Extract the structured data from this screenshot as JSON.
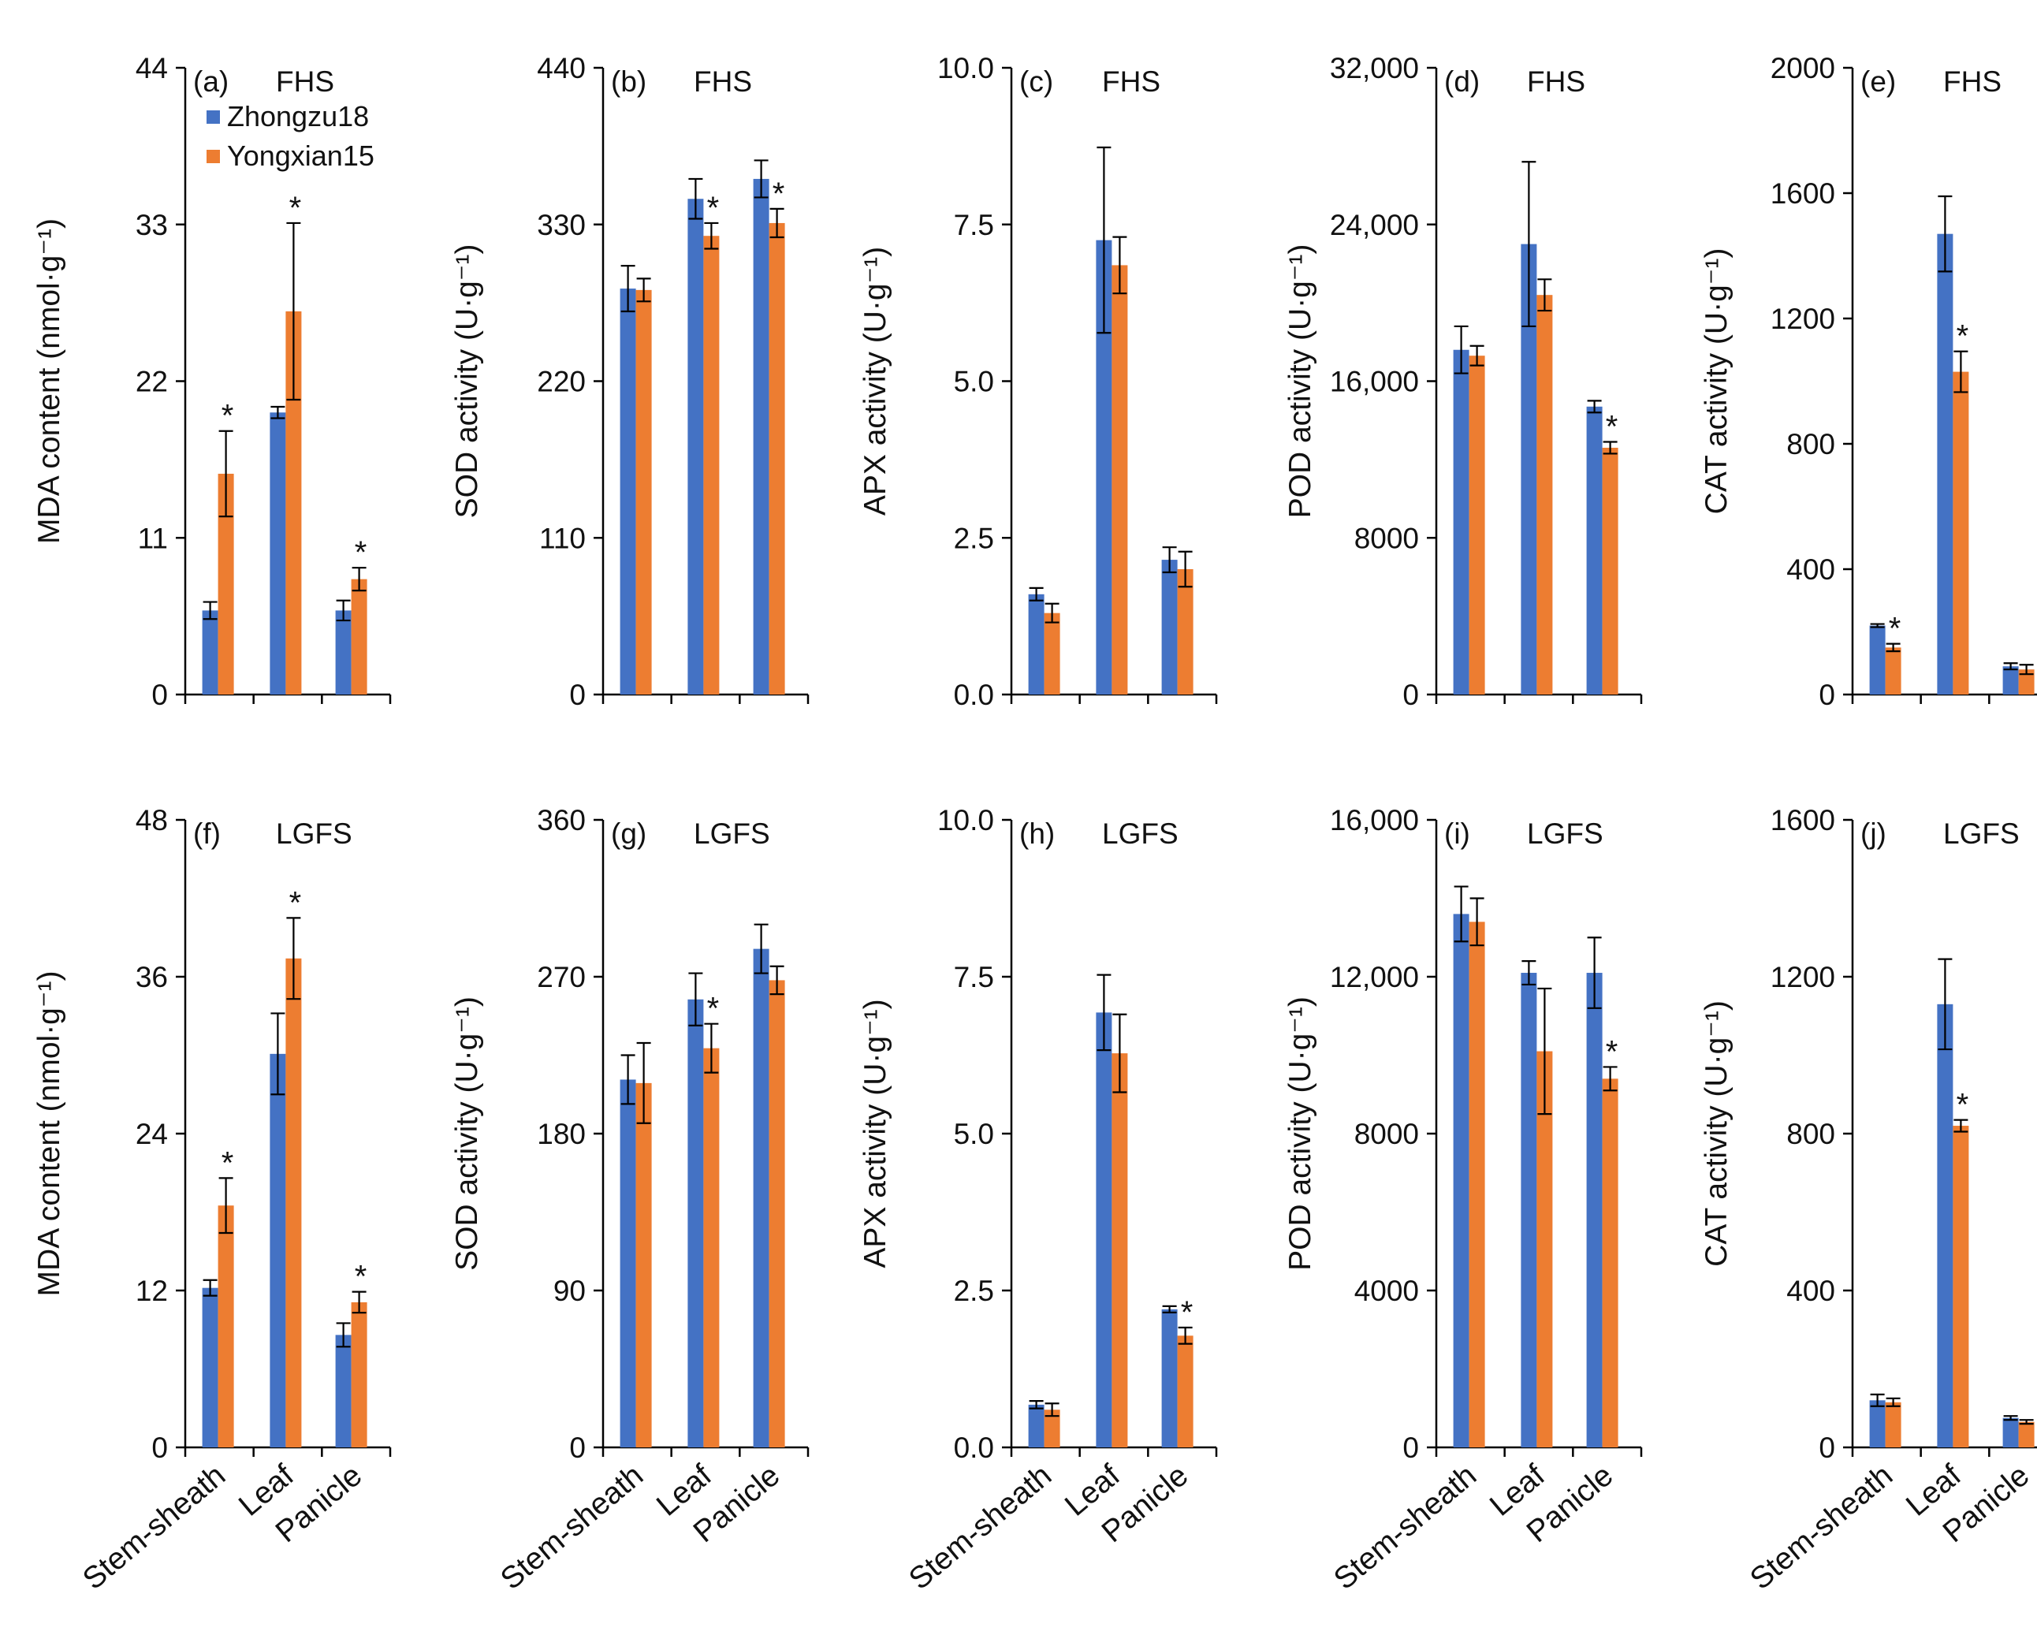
{
  "legend": {
    "series": [
      {
        "name": "Zhongzu18",
        "color": "#4472C4"
      },
      {
        "name": "Yongxian15",
        "color": "#ED7D31"
      }
    ]
  },
  "colors": {
    "series1": "#4472C4",
    "series2": "#ED7D31",
    "axis": "#000000"
  },
  "chart_data": [
    {
      "type": "bar",
      "panel": "(a)",
      "stage": "FHS",
      "ylabel": "MDA content (nmol·g⁻¹)",
      "ylim": [
        0,
        44
      ],
      "yticks": [
        "0",
        "11",
        "22",
        "33",
        "44"
      ],
      "yticks_values": [
        0,
        11,
        22,
        33,
        44
      ],
      "categories": [
        "Stem-sheath",
        "Leaf",
        "Panicle"
      ],
      "series": [
        {
          "name": "Zhongzu18",
          "values": [
            5.9,
            19.8,
            5.9
          ],
          "errors": [
            0.6,
            0.4,
            0.7
          ]
        },
        {
          "name": "Yongxian15",
          "values": [
            15.5,
            26.9,
            8.1
          ],
          "errors": [
            3.0,
            6.2,
            0.8
          ]
        }
      ],
      "significance": [
        {
          "category": 0,
          "label": "*"
        },
        {
          "category": 1,
          "label": "*"
        },
        {
          "category": 2,
          "label": "*"
        }
      ]
    },
    {
      "type": "bar",
      "panel": "(b)",
      "stage": "FHS",
      "ylabel": "SOD activity (U·g⁻¹)",
      "ylim": [
        0,
        440
      ],
      "yticks": [
        "0",
        "110",
        "220",
        "330",
        "440"
      ],
      "yticks_values": [
        0,
        110,
        220,
        330,
        440
      ],
      "categories": [
        "Stem-sheath",
        "Leaf",
        "Panicle"
      ],
      "series": [
        {
          "name": "Zhongzu18",
          "values": [
            285,
            348,
            362
          ],
          "errors": [
            16,
            14,
            13
          ]
        },
        {
          "name": "Yongxian15",
          "values": [
            284,
            322,
            331
          ],
          "errors": [
            8,
            9,
            10
          ]
        }
      ],
      "significance": [
        {
          "category": 1,
          "label": "*"
        },
        {
          "category": 2,
          "label": "*"
        }
      ]
    },
    {
      "type": "bar",
      "panel": "(c)",
      "stage": "FHS",
      "ylabel": "APX activity (U·g⁻¹)",
      "ylim": [
        0,
        10
      ],
      "yticks": [
        "0.0",
        "2.5",
        "5.0",
        "7.5",
        "10.0"
      ],
      "yticks_values": [
        0,
        2.5,
        5,
        7.5,
        10
      ],
      "categories": [
        "Stem-sheath",
        "Leaf",
        "Panicle"
      ],
      "series": [
        {
          "name": "Zhongzu18",
          "values": [
            1.6,
            7.25,
            2.15
          ],
          "errors": [
            0.1,
            1.48,
            0.2
          ]
        },
        {
          "name": "Yongxian15",
          "values": [
            1.3,
            6.85,
            2.0
          ],
          "errors": [
            0.15,
            0.45,
            0.28
          ]
        }
      ],
      "significance": []
    },
    {
      "type": "bar",
      "panel": "(d)",
      "stage": "FHS",
      "ylabel": "POD activity (U·g⁻¹)",
      "ylim": [
        0,
        32000
      ],
      "yticks": [
        "0",
        "8000",
        "16,000",
        "24,000",
        "32,000"
      ],
      "yticks_values": [
        0,
        8000,
        16000,
        24000,
        32000
      ],
      "categories": [
        "Stem-sheath",
        "Leaf",
        "Panicle"
      ],
      "series": [
        {
          "name": "Zhongzu18",
          "values": [
            17600,
            23000,
            14700
          ],
          "errors": [
            1200,
            4200,
            300
          ]
        },
        {
          "name": "Yongxian15",
          "values": [
            17300,
            20400,
            12600
          ],
          "errors": [
            500,
            800,
            300
          ]
        }
      ],
      "significance": [
        {
          "category": 2,
          "label": "*"
        }
      ]
    },
    {
      "type": "bar",
      "panel": "(e)",
      "stage": "FHS",
      "ylabel": "CAT activity (U·g⁻¹)",
      "ylim": [
        0,
        2000
      ],
      "yticks": [
        "0",
        "400",
        "800",
        "1200",
        "1600",
        "2000"
      ],
      "yticks_values": [
        0,
        400,
        800,
        1200,
        1600,
        2000
      ],
      "categories": [
        "Stem-sheath",
        "Leaf",
        "Panicle"
      ],
      "series": [
        {
          "name": "Zhongzu18",
          "values": [
            220,
            1470,
            90
          ],
          "errors": [
            5,
            120,
            10
          ]
        },
        {
          "name": "Yongxian15",
          "values": [
            150,
            1030,
            80
          ],
          "errors": [
            12,
            65,
            15
          ]
        }
      ],
      "significance": [
        {
          "category": 0,
          "label": "*"
        },
        {
          "category": 1,
          "label": "*"
        }
      ]
    },
    {
      "type": "bar",
      "panel": "(f)",
      "stage": "LGFS",
      "ylabel": "MDA content (nmol·g⁻¹)",
      "ylim": [
        0,
        48
      ],
      "yticks": [
        "0",
        "12",
        "24",
        "36",
        "48"
      ],
      "yticks_values": [
        0,
        12,
        24,
        36,
        48
      ],
      "categories": [
        "Stem-sheath",
        "Leaf",
        "Panicle"
      ],
      "series": [
        {
          "name": "Zhongzu18",
          "values": [
            12.2,
            30.1,
            8.6
          ],
          "errors": [
            0.6,
            3.1,
            0.9
          ]
        },
        {
          "name": "Yongxian15",
          "values": [
            18.5,
            37.4,
            11.1
          ],
          "errors": [
            2.1,
            3.1,
            0.8
          ]
        }
      ],
      "significance": [
        {
          "category": 0,
          "label": "*"
        },
        {
          "category": 1,
          "label": "*"
        },
        {
          "category": 2,
          "label": "*"
        }
      ]
    },
    {
      "type": "bar",
      "panel": "(g)",
      "stage": "LGFS",
      "ylabel": "SOD activity (U·g⁻¹)",
      "ylim": [
        0,
        360
      ],
      "yticks": [
        "0",
        "90",
        "180",
        "270",
        "360"
      ],
      "yticks_values": [
        0,
        90,
        180,
        270,
        360
      ],
      "categories": [
        "Stem-sheath",
        "Leaf",
        "Panicle"
      ],
      "series": [
        {
          "name": "Zhongzu18",
          "values": [
            211,
            257,
            286
          ],
          "errors": [
            14,
            15,
            14
          ]
        },
        {
          "name": "Yongxian15",
          "values": [
            209,
            229,
            268
          ],
          "errors": [
            23,
            14,
            8
          ]
        }
      ],
      "significance": [
        {
          "category": 1,
          "label": "*"
        }
      ]
    },
    {
      "type": "bar",
      "panel": "(h)",
      "stage": "LGFS",
      "ylabel": "APX activity (U·g⁻¹)",
      "ylim": [
        0,
        10
      ],
      "yticks": [
        "0.0",
        "2.5",
        "5.0",
        "7.5",
        "10.0"
      ],
      "yticks_values": [
        0,
        2.5,
        5,
        7.5,
        10
      ],
      "categories": [
        "Stem-sheath",
        "Leaf",
        "Panicle"
      ],
      "series": [
        {
          "name": "Zhongzu18",
          "values": [
            0.68,
            6.93,
            2.2
          ],
          "errors": [
            0.06,
            0.6,
            0.05
          ]
        },
        {
          "name": "Yongxian15",
          "values": [
            0.6,
            6.28,
            1.78
          ],
          "errors": [
            0.1,
            0.62,
            0.13
          ]
        }
      ],
      "significance": [
        {
          "category": 2,
          "label": "*"
        }
      ]
    },
    {
      "type": "bar",
      "panel": "(i)",
      "stage": "LGFS",
      "ylabel": "POD activity (U·g⁻¹)",
      "ylim": [
        0,
        16000
      ],
      "yticks": [
        "0",
        "4000",
        "8000",
        "12,000",
        "16,000"
      ],
      "yticks_values": [
        0,
        4000,
        8000,
        12000,
        16000
      ],
      "categories": [
        "Stem-sheath",
        "Leaf",
        "Panicle"
      ],
      "series": [
        {
          "name": "Zhongzu18",
          "values": [
            13600,
            12100,
            12100
          ],
          "errors": [
            700,
            300,
            900
          ]
        },
        {
          "name": "Yongxian15",
          "values": [
            13400,
            10100,
            9400
          ],
          "errors": [
            600,
            1600,
            300
          ]
        }
      ],
      "significance": [
        {
          "category": 2,
          "label": "*"
        }
      ]
    },
    {
      "type": "bar",
      "panel": "(j)",
      "stage": "LGFS",
      "ylabel": "CAT activity (U·g⁻¹)",
      "ylim": [
        0,
        1600
      ],
      "yticks": [
        "0",
        "400",
        "800",
        "1200",
        "1600"
      ],
      "yticks_values": [
        0,
        400,
        800,
        1200,
        1600
      ],
      "categories": [
        "Stem-sheath",
        "Leaf",
        "Panicle"
      ],
      "series": [
        {
          "name": "Zhongzu18",
          "values": [
            120,
            1130,
            75
          ],
          "errors": [
            15,
            115,
            5
          ]
        },
        {
          "name": "Yongxian15",
          "values": [
            115,
            820,
            65
          ],
          "errors": [
            10,
            15,
            5
          ]
        }
      ],
      "significance": [
        {
          "category": 1,
          "label": "*"
        }
      ]
    }
  ]
}
